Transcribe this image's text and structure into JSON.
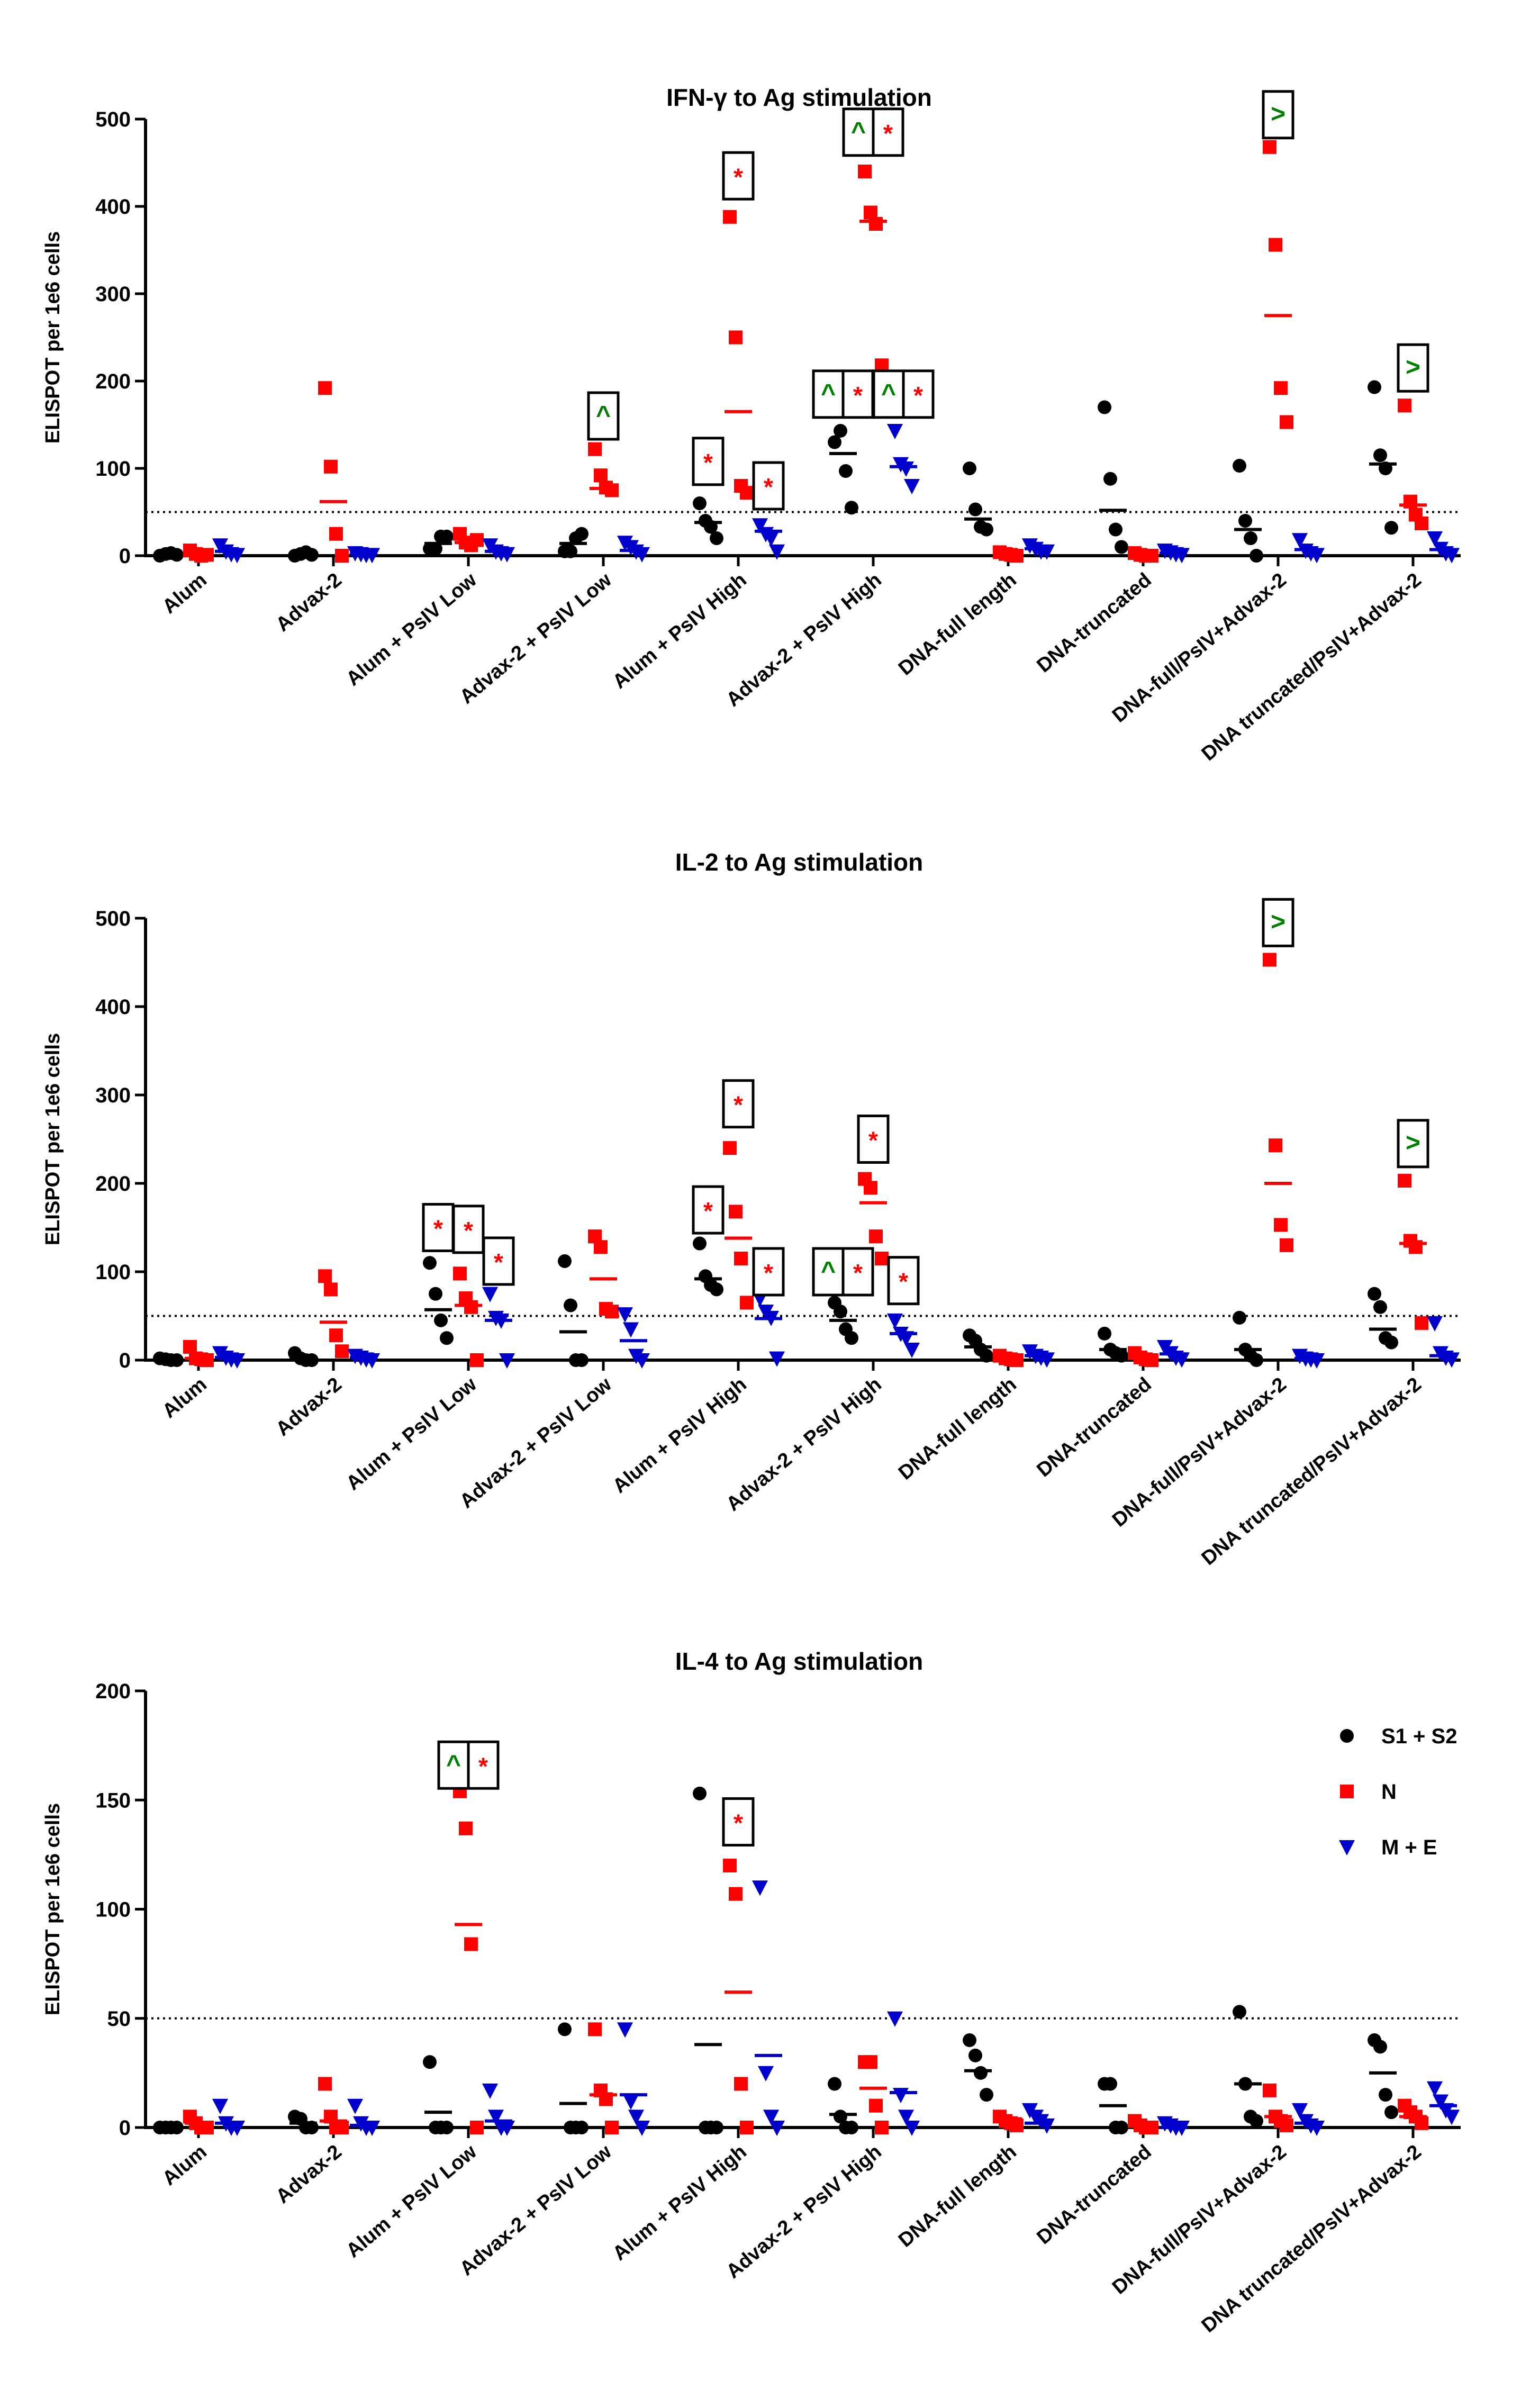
{
  "figure": {
    "ylabel": "ELISPOT per 1e6 cells",
    "categories": [
      "Alum",
      "Advax-2",
      "Alum + PsIV Low",
      "Advax-2 + PsIV Low",
      "Alum + PsIV High",
      "Advax-2 + PsIV High",
      "DNA-full length",
      "DNA-truncated",
      "DNA-full/PsIV+Advax-2",
      "DNA truncated/PsIV+Advax-2"
    ],
    "legend": [
      {
        "name": "S1 + S2",
        "marker": "circle",
        "color": "#000000"
      },
      {
        "name": "N",
        "marker": "square",
        "color": "#ff0000"
      },
      {
        "name": "M + E",
        "marker": "triangle-down",
        "color": "#0000cc"
      }
    ],
    "colors": {
      "star": "#ff0000",
      "green": "#008000",
      "axis": "#000000",
      "dotted": "#000000"
    }
  },
  "chart_data": [
    {
      "type": "scatter",
      "title": "IFN-γ to Ag stimulation",
      "ylabel": "ELISPOT per 1e6 cells",
      "ylim": [
        0,
        500
      ],
      "yticks": [
        0,
        100,
        200,
        300,
        400,
        500
      ],
      "threshold": 50,
      "categories": [
        "Alum",
        "Advax-2",
        "Alum + PsIV Low",
        "Advax-2 + PsIV Low",
        "Alum + PsIV High",
        "Advax-2 + PsIV High",
        "DNA-full length",
        "DNA-truncated",
        "DNA-full/PsIV+Advax-2",
        "DNA truncated/PsIV+Advax-2"
      ],
      "series": [
        {
          "name": "S1 + S2",
          "means": [
            1,
            2,
            14,
            14,
            38,
            117,
            42,
            52,
            30,
            105
          ],
          "points": [
            [
              0,
              2,
              3,
              1
            ],
            [
              0,
              2,
              4,
              1
            ],
            [
              8,
              8,
              22,
              22
            ],
            [
              5,
              5,
              20,
              25
            ],
            [
              60,
              40,
              33,
              20
            ],
            [
              130,
              143,
              97,
              55
            ],
            [
              100,
              53,
              33,
              30
            ],
            [
              170,
              88,
              30,
              10
            ],
            [
              103,
              40,
              20,
              0
            ],
            [
              193,
              115,
              100,
              32
            ]
          ]
        },
        {
          "name": "N",
          "means": [
            3,
            62,
            15,
            77,
            165,
            383,
            2,
            1,
            275,
            58
          ],
          "points": [
            [
              6,
              2,
              0,
              1
            ],
            [
              192,
              102,
              25,
              0
            ],
            [
              25,
              15,
              12,
              18
            ],
            [
              122,
              92,
              78,
              75
            ],
            [
              388,
              250,
              80,
              72
            ],
            [
              440,
              393,
              380,
              218
            ],
            [
              4,
              2,
              1,
              0
            ],
            [
              3,
              1,
              0,
              0
            ],
            [
              468,
              356,
              192,
              153
            ],
            [
              172,
              62,
              47,
              37
            ]
          ]
        },
        {
          "name": "M + E",
          "means": [
            5,
            2,
            5,
            6,
            28,
            102,
            8,
            3,
            7,
            7
          ],
          "points": [
            [
              12,
              5,
              2,
              1
            ],
            [
              3,
              2,
              1,
              1
            ],
            [
              12,
              5,
              3,
              2
            ],
            [
              15,
              10,
              5,
              2
            ],
            [
              35,
              25,
              20,
              5
            ],
            [
              143,
              105,
              100,
              80
            ],
            [
              12,
              8,
              5,
              5
            ],
            [
              6,
              4,
              2,
              1
            ],
            [
              18,
              6,
              3,
              1
            ],
            [
              20,
              8,
              3,
              1
            ]
          ]
        }
      ],
      "annotations": [
        {
          "group": 3,
          "series": 1,
          "y": 160,
          "cells": [
            "^"
          ]
        },
        {
          "group": 4,
          "series": 0,
          "y": 108,
          "cells": [
            "*"
          ]
        },
        {
          "group": 4,
          "series": 1,
          "y": 435,
          "cells": [
            "*"
          ]
        },
        {
          "group": 4,
          "series": 2,
          "y": 80,
          "cells": [
            "*"
          ]
        },
        {
          "group": 5,
          "series": 0,
          "y": 185,
          "cells": [
            "^",
            "*"
          ]
        },
        {
          "group": 5,
          "series": 1,
          "y": 485,
          "cells": [
            "^",
            "*"
          ]
        },
        {
          "group": 5,
          "series": 2,
          "y": 185,
          "cells": [
            "^",
            "*"
          ]
        },
        {
          "group": 8,
          "series": 1,
          "y": 505,
          "cells": [
            ">"
          ]
        },
        {
          "group": 9,
          "series": 1,
          "y": 215,
          "cells": [
            ">"
          ]
        }
      ]
    },
    {
      "type": "scatter",
      "title": "IL-2 to Ag stimulation",
      "ylabel": "ELISPOT per 1e6 cells",
      "ylim": [
        0,
        500
      ],
      "yticks": [
        0,
        100,
        200,
        300,
        400,
        500
      ],
      "threshold": 50,
      "categories": [
        "Alum",
        "Advax-2",
        "Alum + PsIV Low",
        "Advax-2 + PsIV Low",
        "Alum + PsIV High",
        "Advax-2 + PsIV High",
        "DNA-full length",
        "DNA-truncated",
        "DNA-full/PsIV+Advax-2",
        "DNA truncated/PsIV+Advax-2"
      ],
      "series": [
        {
          "name": "S1 + S2",
          "means": [
            1,
            2,
            57,
            32,
            92,
            45,
            15,
            12,
            12,
            35
          ],
          "points": [
            [
              2,
              1,
              0,
              0
            ],
            [
              8,
              2,
              0,
              0
            ],
            [
              110,
              75,
              45,
              25
            ],
            [
              112,
              62,
              0,
              0
            ],
            [
              132,
              95,
              85,
              80
            ],
            [
              65,
              55,
              35,
              25
            ],
            [
              28,
              22,
              12,
              5
            ],
            [
              30,
              12,
              8,
              5
            ],
            [
              48,
              12,
              5,
              0
            ],
            [
              75,
              60,
              25,
              20
            ]
          ]
        },
        {
          "name": "N",
          "means": [
            2,
            43,
            62,
            92,
            138,
            178,
            2,
            2,
            200,
            132
          ],
          "points": [
            [
              15,
              2,
              1,
              0
            ],
            [
              95,
              80,
              28,
              10
            ],
            [
              98,
              70,
              60,
              0
            ],
            [
              140,
              128,
              58,
              55
            ],
            [
              240,
              168,
              115,
              65
            ],
            [
              205,
              195,
              140,
              115
            ],
            [
              5,
              2,
              1,
              0
            ],
            [
              8,
              3,
              1,
              0
            ],
            [
              453,
              243,
              153,
              130
            ],
            [
              203,
              135,
              128,
              42
            ]
          ]
        },
        {
          "name": "M + E",
          "means": [
            3,
            3,
            45,
            22,
            47,
            30,
            5,
            7,
            2,
            5
          ],
          "points": [
            [
              8,
              3,
              1,
              0
            ],
            [
              5,
              3,
              1,
              0
            ],
            [
              75,
              48,
              45,
              0
            ],
            [
              52,
              35,
              5,
              0
            ],
            [
              70,
              55,
              48,
              2
            ],
            [
              45,
              30,
              25,
              12
            ],
            [
              10,
              5,
              3,
              1
            ],
            [
              15,
              8,
              3,
              1
            ],
            [
              5,
              2,
              1,
              0
            ],
            [
              42,
              8,
              3,
              1
            ]
          ]
        }
      ],
      "annotations": [
        {
          "group": 2,
          "series": 0,
          "y": 150,
          "cells": [
            "*"
          ]
        },
        {
          "group": 2,
          "series": 1,
          "y": 148,
          "cells": [
            "*"
          ]
        },
        {
          "group": 2,
          "series": 2,
          "y": 112,
          "cells": [
            "*"
          ]
        },
        {
          "group": 3,
          "series": 1,
          "y": 0,
          "cells": []
        },
        {
          "group": 4,
          "series": 0,
          "y": 170,
          "cells": [
            "*"
          ]
        },
        {
          "group": 4,
          "series": 1,
          "y": 290,
          "cells": [
            "*"
          ]
        },
        {
          "group": 4,
          "series": 2,
          "y": 100,
          "cells": [
            "*"
          ]
        },
        {
          "group": 5,
          "series": 0,
          "y": 100,
          "cells": [
            "^",
            "*"
          ]
        },
        {
          "group": 5,
          "series": 1,
          "y": 250,
          "cells": [
            "*"
          ]
        },
        {
          "group": 5,
          "series": 2,
          "y": 90,
          "cells": [
            "*"
          ]
        },
        {
          "group": 8,
          "series": 1,
          "y": 495,
          "cells": [
            ">"
          ]
        },
        {
          "group": 9,
          "series": 1,
          "y": 245,
          "cells": [
            ">"
          ]
        }
      ]
    },
    {
      "type": "scatter",
      "title": "IL-4 to Ag stimulation",
      "ylabel": "ELISPOT per 1e6 cells",
      "ylim": [
        0,
        200
      ],
      "yticks": [
        0,
        50,
        100,
        150,
        200
      ],
      "threshold": 50,
      "categories": [
        "Alum",
        "Advax-2",
        "Alum + PsIV Low",
        "Advax-2 + PsIV Low",
        "Alum + PsIV High",
        "Advax-2 + PsIV High",
        "DNA-full length",
        "DNA-truncated",
        "DNA-full/PsIV+Advax-2",
        "DNA truncated/PsIV+Advax-2"
      ],
      "series": [
        {
          "name": "S1 + S2",
          "means": [
            0,
            2,
            7,
            11,
            38,
            6,
            26,
            10,
            20,
            25
          ],
          "points": [
            [
              0,
              0,
              0,
              0
            ],
            [
              5,
              4,
              0,
              0
            ],
            [
              30,
              0,
              0,
              0
            ],
            [
              45,
              0,
              0,
              0
            ],
            [
              153,
              0,
              0,
              0
            ],
            [
              20,
              5,
              0,
              0
            ],
            [
              40,
              33,
              25,
              15
            ],
            [
              20,
              20,
              0,
              0
            ],
            [
              53,
              20,
              5,
              3
            ],
            [
              40,
              37,
              15,
              7
            ]
          ]
        },
        {
          "name": "N",
          "means": [
            2,
            3,
            93,
            15,
            62,
            18,
            4,
            2,
            5,
            5
          ],
          "points": [
            [
              5,
              2,
              0,
              0
            ],
            [
              20,
              5,
              0,
              0
            ],
            [
              154,
              137,
              84,
              0
            ],
            [
              45,
              17,
              13,
              0
            ],
            [
              120,
              107,
              20,
              0
            ],
            [
              30,
              30,
              10,
              0
            ],
            [
              5,
              3,
              2,
              1
            ],
            [
              3,
              1,
              0,
              0
            ],
            [
              17,
              5,
              3,
              1
            ],
            [
              10,
              7,
              5,
              2
            ]
          ]
        },
        {
          "name": "M + E",
          "means": [
            2,
            1,
            3,
            15,
            33,
            16,
            2,
            0,
            2,
            10
          ],
          "points": [
            [
              10,
              2,
              0,
              0
            ],
            [
              10,
              2,
              0,
              0
            ],
            [
              17,
              5,
              0,
              0
            ],
            [
              45,
              12,
              5,
              0
            ],
            [
              110,
              25,
              5,
              0
            ],
            [
              50,
              15,
              5,
              0
            ],
            [
              8,
              5,
              3,
              1
            ],
            [
              2,
              1,
              0,
              0
            ],
            [
              8,
              3,
              1,
              0
            ],
            [
              18,
              12,
              8,
              5
            ]
          ]
        }
      ],
      "annotations": [
        {
          "group": 2,
          "series": 1,
          "y": 166,
          "cells": [
            "^",
            "*"
          ]
        },
        {
          "group": 4,
          "series": 1,
          "y": 140,
          "cells": [
            "*"
          ]
        }
      ]
    }
  ]
}
